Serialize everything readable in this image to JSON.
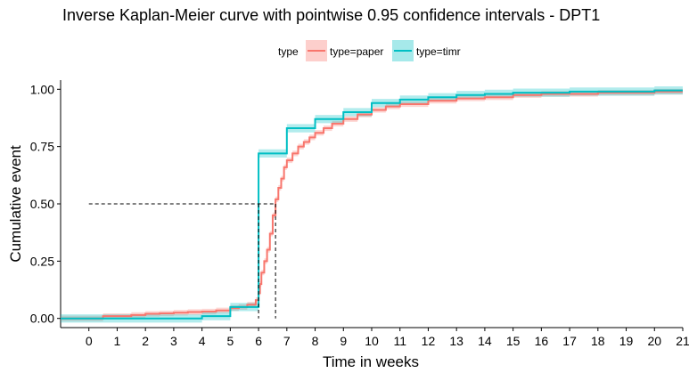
{
  "chart_data": {
    "type": "line",
    "title": "Inverse Kaplan-Meier curve with pointwise 0.95 confidence intervals - DPT1",
    "xlabel": "Time in weeks",
    "ylabel": "Cumulative event",
    "xlim": [
      -1,
      21
    ],
    "ylim": [
      0,
      1.04
    ],
    "x_ticks": [
      "0",
      "1",
      "2",
      "3",
      "4",
      "5",
      "6",
      "7",
      "8",
      "9",
      "10",
      "11",
      "12",
      "13",
      "14",
      "15",
      "16",
      "17",
      "18",
      "19",
      "20",
      "21"
    ],
    "y_ticks": [
      "0.00",
      "0.25",
      "0.50",
      "0.75",
      "1.00"
    ],
    "legend": {
      "title": "type",
      "placement": "top",
      "entries": [
        "type=paper",
        "type=timr"
      ]
    },
    "median_line": {
      "y": 0.5,
      "x_values": [
        6.0,
        6.6
      ],
      "style": "dashed"
    },
    "series": [
      {
        "name": "type=paper",
        "color": "#F8766D",
        "band_color": "#F8766D",
        "points": [
          [
            -1,
            0.0
          ],
          [
            0,
            0.0
          ],
          [
            0.5,
            0.01
          ],
          [
            1,
            0.01
          ],
          [
            1.5,
            0.015
          ],
          [
            2,
            0.02
          ],
          [
            2.5,
            0.022
          ],
          [
            3,
            0.025
          ],
          [
            3.5,
            0.028
          ],
          [
            4,
            0.03
          ],
          [
            4.5,
            0.035
          ],
          [
            5,
            0.045
          ],
          [
            5.3,
            0.05
          ],
          [
            5.6,
            0.06
          ],
          [
            5.9,
            0.08
          ],
          [
            6.0,
            0.11
          ],
          [
            6.05,
            0.15
          ],
          [
            6.1,
            0.2
          ],
          [
            6.2,
            0.25
          ],
          [
            6.3,
            0.3
          ],
          [
            6.4,
            0.37
          ],
          [
            6.5,
            0.45
          ],
          [
            6.6,
            0.52
          ],
          [
            6.7,
            0.57
          ],
          [
            6.8,
            0.61
          ],
          [
            6.9,
            0.66
          ],
          [
            7.0,
            0.69
          ],
          [
            7.2,
            0.72
          ],
          [
            7.4,
            0.75
          ],
          [
            7.6,
            0.77
          ],
          [
            7.8,
            0.79
          ],
          [
            8.0,
            0.81
          ],
          [
            8.3,
            0.83
          ],
          [
            8.6,
            0.85
          ],
          [
            9.0,
            0.87
          ],
          [
            9.5,
            0.89
          ],
          [
            10,
            0.91
          ],
          [
            10.5,
            0.925
          ],
          [
            11,
            0.935
          ],
          [
            12,
            0.95
          ],
          [
            13,
            0.96
          ],
          [
            14,
            0.965
          ],
          [
            15,
            0.975
          ],
          [
            16,
            0.98
          ],
          [
            17,
            0.98
          ],
          [
            18,
            0.985
          ],
          [
            19,
            0.985
          ],
          [
            20,
            0.99
          ],
          [
            21,
            0.99
          ]
        ]
      },
      {
        "name": "type=timr",
        "color": "#00BFC4",
        "band_color": "#00BFC4",
        "points": [
          [
            -1,
            0.0
          ],
          [
            2,
            0.0
          ],
          [
            4,
            0.01
          ],
          [
            5,
            0.05
          ],
          [
            6,
            0.72
          ],
          [
            7,
            0.83
          ],
          [
            8,
            0.87
          ],
          [
            9,
            0.9
          ],
          [
            10,
            0.94
          ],
          [
            11,
            0.955
          ],
          [
            12,
            0.965
          ],
          [
            13,
            0.975
          ],
          [
            14,
            0.98
          ],
          [
            15,
            0.985
          ],
          [
            17,
            0.99
          ],
          [
            20,
            0.995
          ],
          [
            21,
            0.995
          ]
        ]
      }
    ]
  }
}
